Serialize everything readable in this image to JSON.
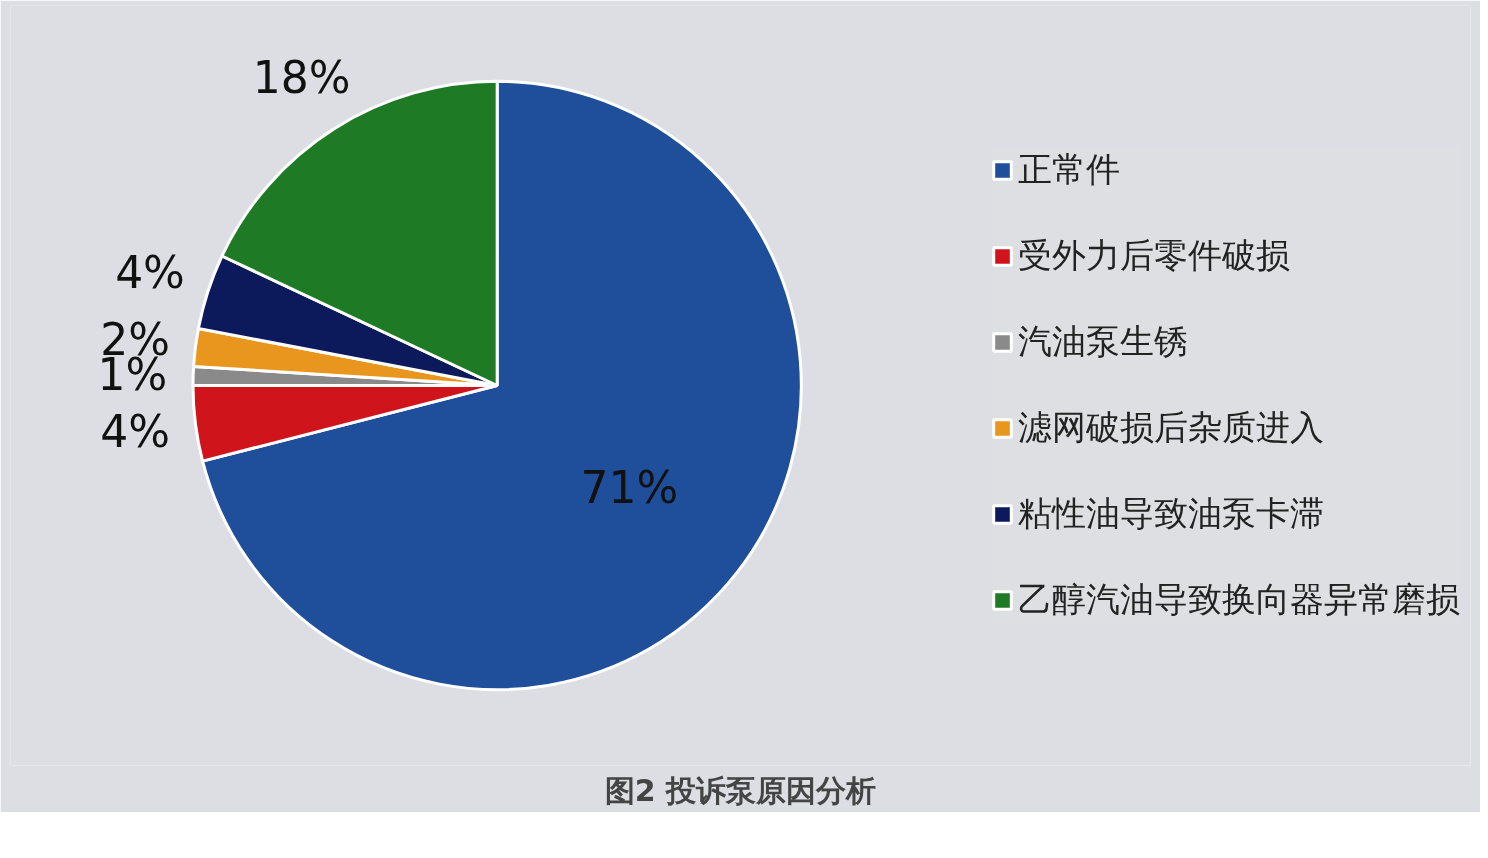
{
  "chart_data": {
    "type": "pie",
    "title": "图2 投诉泵原因分析",
    "categories": [
      "正常件",
      "受外力后零件破损",
      "汽油泵生锈",
      "滤网破损后杂质进入",
      "粘性油导致油泵卡滞",
      "乙醇汽油导致换向器异常磨损"
    ],
    "values": [
      71,
      4,
      1,
      2,
      4,
      18
    ],
    "colors": [
      "#1f4e9a",
      "#d0141c",
      "#8a8a8a",
      "#e8961e",
      "#0c1a5c",
      "#1e7a25"
    ],
    "value_labels": [
      "71%",
      "4%",
      "1%",
      "2%",
      "4%",
      "18%"
    ],
    "legend": "right"
  }
}
